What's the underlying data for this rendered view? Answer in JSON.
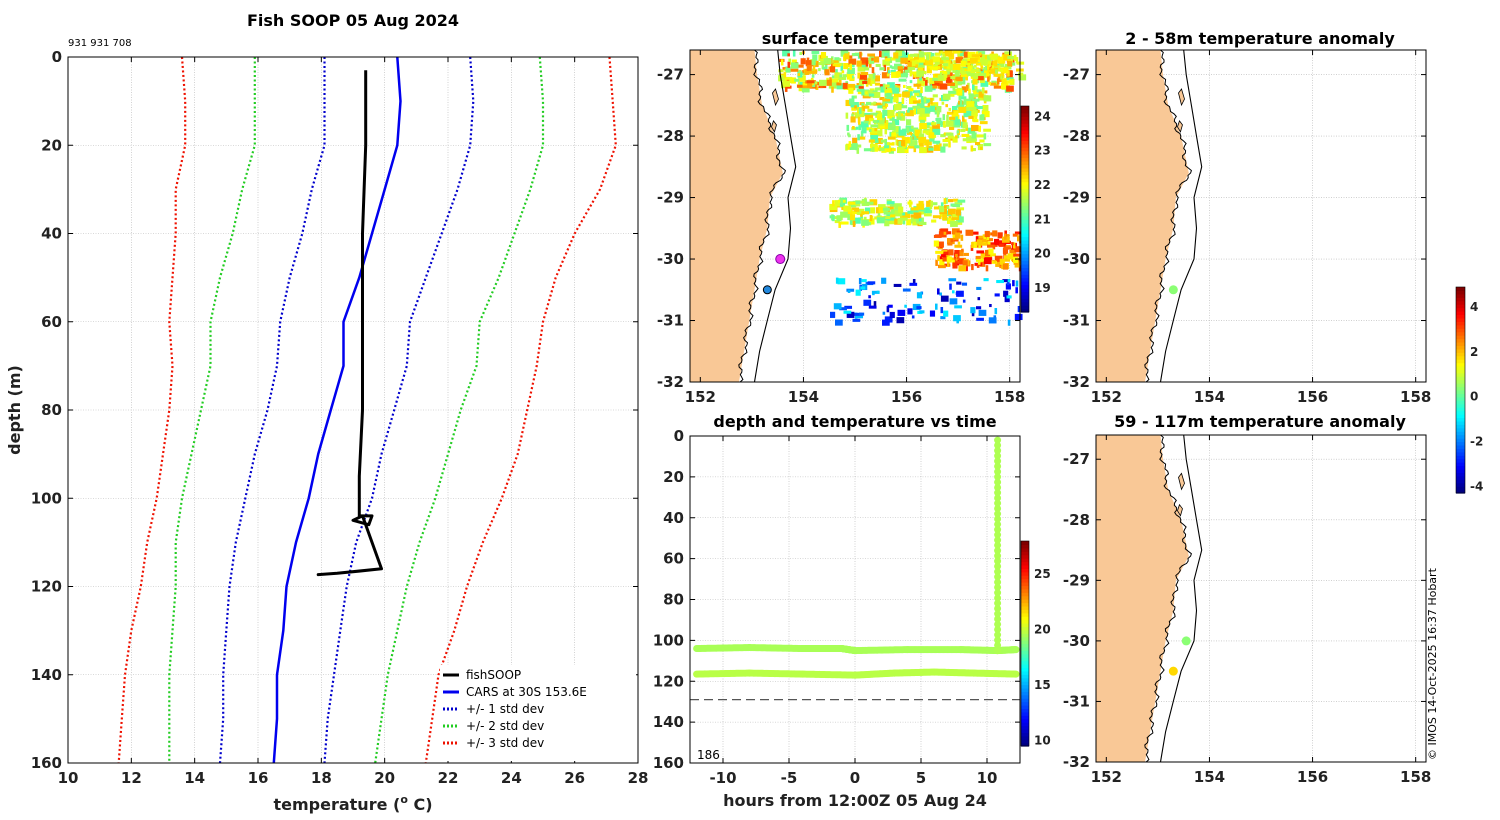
{
  "colors": {
    "fishsoop": "#000000",
    "cars": "#0000ee",
    "std1": "#0000cc",
    "std2": "#22cc22",
    "std3": "#ee1100",
    "land": "#f9c896",
    "grid": "#b4b4b4"
  },
  "chart_data": [
    {
      "id": "profile",
      "type": "line",
      "title": "Fish SOOP 05 Aug 2024",
      "subtitle": "931 931 708",
      "xlabel": "temperature (",
      "xlabel_sup": "o",
      "xlabel_end": " C)",
      "ylabel": "depth (m)",
      "xlim": [
        10,
        28
      ],
      "ylim": [
        0,
        160
      ],
      "y_reversed": true,
      "xticks": [
        10,
        12,
        14,
        16,
        18,
        20,
        22,
        24,
        26,
        28
      ],
      "yticks": [
        0,
        20,
        40,
        60,
        80,
        100,
        120,
        140,
        160
      ],
      "legend": {
        "placement": "bottom-right",
        "entries": [
          "fishSOOP",
          "CARS at 30S 153.6E",
          "+/- 1 std dev",
          "+/- 2 std dev",
          "+/- 3 std dev"
        ]
      },
      "series": [
        {
          "name": "fishSOOP",
          "points": [
            [
              19.4,
              3
            ],
            [
              19.4,
              20
            ],
            [
              19.3,
              40
            ],
            [
              19.3,
              60
            ],
            [
              19.3,
              80
            ],
            [
              19.2,
              95
            ],
            [
              19.2,
              104
            ],
            [
              19.6,
              104
            ],
            [
              19.5,
              106
            ],
            [
              19.0,
              105
            ],
            [
              19.3,
              104
            ],
            [
              19.9,
              116
            ],
            [
              19.2,
              116.5
            ],
            [
              18.5,
              117
            ],
            [
              17.9,
              117.3
            ],
            [
              18.5,
              117
            ],
            [
              19.9,
              116
            ]
          ]
        },
        {
          "name": "CARS at 30S 153.6E",
          "points": [
            [
              20.4,
              0
            ],
            [
              20.5,
              10
            ],
            [
              20.4,
              20
            ],
            [
              20.0,
              30
            ],
            [
              19.6,
              40
            ],
            [
              19.2,
              50
            ],
            [
              18.7,
              60
            ],
            [
              18.7,
              70
            ],
            [
              18.3,
              80
            ],
            [
              17.9,
              90
            ],
            [
              17.6,
              100
            ],
            [
              17.2,
              110
            ],
            [
              16.9,
              120
            ],
            [
              16.8,
              130
            ],
            [
              16.6,
              140
            ],
            [
              16.6,
              150
            ],
            [
              16.5,
              160
            ]
          ]
        },
        {
          "name": "+/- 1 std dev (lower)",
          "points": [
            [
              18.1,
              0
            ],
            [
              18.1,
              10
            ],
            [
              18.1,
              20
            ],
            [
              17.7,
              30
            ],
            [
              17.4,
              40
            ],
            [
              17.0,
              50
            ],
            [
              16.7,
              60
            ],
            [
              16.6,
              70
            ],
            [
              16.3,
              80
            ],
            [
              15.9,
              90
            ],
            [
              15.6,
              100
            ],
            [
              15.3,
              110
            ],
            [
              15.1,
              120
            ],
            [
              15.0,
              130
            ],
            [
              14.9,
              140
            ],
            [
              14.9,
              150
            ],
            [
              14.8,
              160
            ]
          ]
        },
        {
          "name": "+/- 1 std dev (upper)",
          "points": [
            [
              22.7,
              0
            ],
            [
              22.8,
              10
            ],
            [
              22.7,
              20
            ],
            [
              22.3,
              30
            ],
            [
              21.8,
              40
            ],
            [
              21.3,
              50
            ],
            [
              20.8,
              60
            ],
            [
              20.7,
              70
            ],
            [
              20.3,
              80
            ],
            [
              19.9,
              90
            ],
            [
              19.6,
              100
            ],
            [
              19.1,
              110
            ],
            [
              18.8,
              120
            ],
            [
              18.6,
              130
            ],
            [
              18.4,
              140
            ],
            [
              18.2,
              150
            ],
            [
              18.1,
              160
            ]
          ]
        },
        {
          "name": "+/- 2 std dev (lower)",
          "points": [
            [
              15.9,
              0
            ],
            [
              15.9,
              10
            ],
            [
              15.9,
              20
            ],
            [
              15.5,
              30
            ],
            [
              15.2,
              40
            ],
            [
              14.8,
              50
            ],
            [
              14.5,
              60
            ],
            [
              14.5,
              70
            ],
            [
              14.2,
              80
            ],
            [
              13.9,
              90
            ],
            [
              13.6,
              100
            ],
            [
              13.4,
              110
            ],
            [
              13.4,
              120
            ],
            [
              13.3,
              130
            ],
            [
              13.2,
              140
            ],
            [
              13.2,
              150
            ],
            [
              13.2,
              160
            ]
          ]
        },
        {
          "name": "+/- 2 std dev (upper)",
          "points": [
            [
              24.9,
              0
            ],
            [
              25.0,
              10
            ],
            [
              25.0,
              20
            ],
            [
              24.6,
              30
            ],
            [
              24.1,
              40
            ],
            [
              23.6,
              50
            ],
            [
              23.0,
              60
            ],
            [
              22.9,
              70
            ],
            [
              22.4,
              80
            ],
            [
              22.0,
              90
            ],
            [
              21.6,
              100
            ],
            [
              21.1,
              110
            ],
            [
              20.7,
              120
            ],
            [
              20.4,
              130
            ],
            [
              20.1,
              140
            ],
            [
              19.9,
              150
            ],
            [
              19.7,
              160
            ]
          ]
        },
        {
          "name": "+/- 3 std dev (lower)",
          "points": [
            [
              13.6,
              0
            ],
            [
              13.7,
              10
            ],
            [
              13.7,
              20
            ],
            [
              13.4,
              30
            ],
            [
              13.4,
              40
            ],
            [
              13.3,
              50
            ],
            [
              13.2,
              60
            ],
            [
              13.3,
              70
            ],
            [
              13.2,
              80
            ],
            [
              13.0,
              90
            ],
            [
              12.8,
              100
            ],
            [
              12.5,
              110
            ],
            [
              12.3,
              120
            ],
            [
              12.0,
              130
            ],
            [
              11.8,
              140
            ],
            [
              11.7,
              150
            ],
            [
              11.6,
              160
            ]
          ]
        },
        {
          "name": "+/- 3 std dev (upper)",
          "points": [
            [
              27.1,
              0
            ],
            [
              27.2,
              10
            ],
            [
              27.3,
              20
            ],
            [
              26.8,
              30
            ],
            [
              26.0,
              40
            ],
            [
              25.4,
              50
            ],
            [
              25.0,
              60
            ],
            [
              24.8,
              70
            ],
            [
              24.5,
              80
            ],
            [
              24.2,
              90
            ],
            [
              23.7,
              100
            ],
            [
              23.1,
              110
            ],
            [
              22.6,
              120
            ],
            [
              22.2,
              130
            ],
            [
              21.7,
              140
            ],
            [
              21.5,
              150
            ],
            [
              21.3,
              160
            ]
          ]
        }
      ]
    },
    {
      "id": "sst",
      "type": "heatmap",
      "title": "surface temperature",
      "xlim": [
        151.8,
        158.2
      ],
      "ylim": [
        -32,
        -26.6
      ],
      "xticks": [
        152,
        154,
        156,
        158
      ],
      "yticks": [
        -27,
        -28,
        -29,
        -30,
        -31,
        -32
      ],
      "colorbar": {
        "ticks": [
          19,
          20,
          21,
          22,
          23,
          24
        ],
        "range": [
          18.3,
          24.3
        ]
      },
      "clusters": [
        {
          "lon": [
            153.5,
            158.0
          ],
          "lat": [
            -27.2,
            -26.6
          ],
          "temp": [
            21.0,
            23.2
          ]
        },
        {
          "lon": [
            156.0,
            158.2
          ],
          "lat": [
            -27.0,
            -26.6
          ],
          "temp": [
            21.5,
            22.3
          ]
        },
        {
          "lon": [
            154.8,
            157.5
          ],
          "lat": [
            -28.2,
            -27.2
          ],
          "temp": [
            21.0,
            22.5
          ]
        },
        {
          "lon": [
            156.5,
            158.2
          ],
          "lat": [
            -30.1,
            -29.5
          ],
          "temp": [
            22.0,
            23.6
          ]
        },
        {
          "lon": [
            154.5,
            157.0
          ],
          "lat": [
            -29.4,
            -29.0
          ],
          "temp": [
            21.0,
            22.5
          ]
        },
        {
          "lon": [
            154.5,
            158.2
          ],
          "lat": [
            -31.0,
            -30.3
          ],
          "temp": [
            18.5,
            20.5
          ]
        }
      ],
      "markers": [
        {
          "lon": 153.55,
          "lat": -30.0,
          "label": "magenta"
        },
        {
          "lon": 153.3,
          "lat": -30.5,
          "label": "blue"
        }
      ]
    },
    {
      "id": "timeseries",
      "type": "scatter",
      "title": "depth and temperature vs time",
      "xlabel": "hours from 12:00Z 05 Aug 24",
      "xlim": [
        -12.5,
        12.5
      ],
      "ylim": [
        0,
        160
      ],
      "y_reversed": true,
      "xticks": [
        -10,
        -5,
        0,
        5,
        10
      ],
      "yticks": [
        0,
        20,
        40,
        60,
        80,
        100,
        120,
        140,
        160
      ],
      "colorbar": {
        "ticks": [
          10,
          15,
          20,
          25
        ],
        "range": [
          9.5,
          28
        ]
      },
      "annotation": "186",
      "dashed_depth": 129,
      "tracks": [
        {
          "name": "upper",
          "points": [
            [
              -12,
              104
            ],
            [
              -8,
              103.5
            ],
            [
              -4,
              104
            ],
            [
              -1,
              104
            ],
            [
              0,
              105
            ],
            [
              4,
              104.5
            ],
            [
              8,
              104.5
            ],
            [
              10.8,
              105
            ],
            [
              12.2,
              104.5
            ]
          ],
          "temp": 19.5
        },
        {
          "name": "lower",
          "points": [
            [
              -12,
              116.5
            ],
            [
              -8,
              116
            ],
            [
              -4,
              116.5
            ],
            [
              0,
              117
            ],
            [
              3,
              116
            ],
            [
              6,
              115.5
            ],
            [
              9,
              116
            ],
            [
              12.2,
              116.5
            ]
          ],
          "temp": 19.8
        },
        {
          "name": "profile",
          "points": [
            [
              10.8,
              2
            ],
            [
              10.8,
              105
            ]
          ],
          "temp": 19.6
        }
      ]
    },
    {
      "id": "anom1",
      "type": "scatter",
      "title": "2 - 58m temperature anomaly",
      "xlim": [
        151.8,
        158.2
      ],
      "ylim": [
        -32,
        -26.6
      ],
      "xticks": [
        152,
        154,
        156,
        158
      ],
      "yticks": [
        -27,
        -28,
        -29,
        -30,
        -31,
        -32
      ],
      "points": [
        {
          "lon": 153.3,
          "lat": -30.5,
          "anomaly": 0.4
        }
      ]
    },
    {
      "id": "anom2",
      "type": "scatter",
      "title": "59 - 117m temperature anomaly",
      "xlim": [
        151.8,
        158.2
      ],
      "ylim": [
        -32,
        -26.6
      ],
      "xticks": [
        152,
        154,
        156,
        158
      ],
      "yticks": [
        -27,
        -28,
        -29,
        -30,
        -31,
        -32
      ],
      "points": [
        {
          "lon": 153.55,
          "lat": -30.0,
          "anomaly": 0.4
        },
        {
          "lon": 153.3,
          "lat": -30.5,
          "anomaly": 1.8
        }
      ],
      "colorbar": {
        "ticks": [
          -4,
          -2,
          0,
          2,
          4
        ],
        "range": [
          -4.3,
          4.9
        ]
      }
    }
  ],
  "coast_lon_at_lat": [
    [
      -26.6,
      153.05
    ],
    [
      -27.0,
      153.1
    ],
    [
      -27.5,
      153.2
    ],
    [
      -28.0,
      153.45
    ],
    [
      -28.6,
      153.6
    ],
    [
      -29.0,
      153.35
    ],
    [
      -29.5,
      153.3
    ],
    [
      -30.0,
      153.15
    ],
    [
      -30.5,
      153.05
    ],
    [
      -31.0,
      152.95
    ],
    [
      -31.5,
      152.85
    ],
    [
      -32.0,
      152.75
    ]
  ],
  "shelf_lon_at_lat": [
    [
      -26.6,
      153.5
    ],
    [
      -27.0,
      153.55
    ],
    [
      -27.5,
      153.65
    ],
    [
      -28.0,
      153.75
    ],
    [
      -28.5,
      153.85
    ],
    [
      -29.0,
      153.7
    ],
    [
      -29.5,
      153.75
    ],
    [
      -30.0,
      153.7
    ],
    [
      -30.5,
      153.45
    ],
    [
      -31.0,
      153.3
    ],
    [
      -31.5,
      153.15
    ],
    [
      -32.0,
      153.05
    ]
  ],
  "credit": "© IMOS 14-Oct-2025 16:37 Hobart"
}
